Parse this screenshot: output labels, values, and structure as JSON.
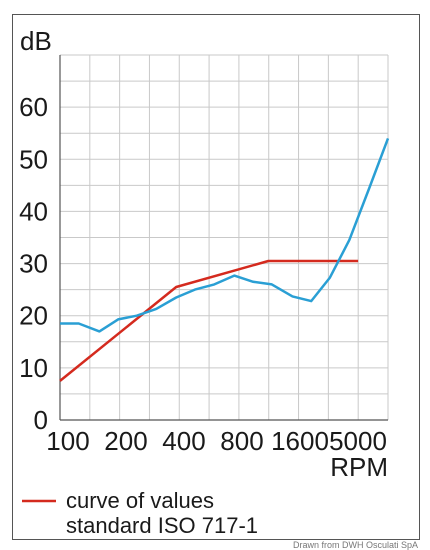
{
  "chart_data": {
    "type": "line",
    "y_unit_label": "dB",
    "xlabel": "RPM",
    "x_scale": "log",
    "x_ticks": [
      "100",
      "200",
      "400",
      "800",
      "1600",
      "5000"
    ],
    "y_ticks": [
      "0",
      "10",
      "20",
      "30",
      "40",
      "50",
      "60"
    ],
    "ylim": [
      0,
      70
    ],
    "grid": true,
    "legend": "bottom",
    "series": [
      {
        "name": "curve of values standard ISO 717-1",
        "color": "#d42a1e",
        "points": [
          {
            "x": 100,
            "y": 7.5
          },
          {
            "x": 400,
            "y": 25.5
          },
          {
            "x": 1200,
            "y": 30.5
          },
          {
            "x": 3500,
            "y": 30.5
          }
        ]
      },
      {
        "name": "",
        "color": "#2a9fd4",
        "points": [
          {
            "x": 100,
            "y": 18.5
          },
          {
            "x": 125,
            "y": 18.5
          },
          {
            "x": 160,
            "y": 17
          },
          {
            "x": 200,
            "y": 19.3
          },
          {
            "x": 250,
            "y": 20
          },
          {
            "x": 315,
            "y": 21.3
          },
          {
            "x": 400,
            "y": 23.5
          },
          {
            "x": 500,
            "y": 25
          },
          {
            "x": 630,
            "y": 26
          },
          {
            "x": 800,
            "y": 27.7
          },
          {
            "x": 1000,
            "y": 26.5
          },
          {
            "x": 1250,
            "y": 26
          },
          {
            "x": 1600,
            "y": 23.7
          },
          {
            "x": 2000,
            "y": 22.8
          },
          {
            "x": 2500,
            "y": 27.3
          },
          {
            "x": 3150,
            "y": 34.5
          },
          {
            "x": 4000,
            "y": 44.5
          },
          {
            "x": 5000,
            "y": 54
          }
        ]
      }
    ]
  },
  "legend": {
    "line1": "curve of values",
    "line2": "standard ISO 717-1"
  },
  "credit": "Drawn from DWH Osculati SpA"
}
